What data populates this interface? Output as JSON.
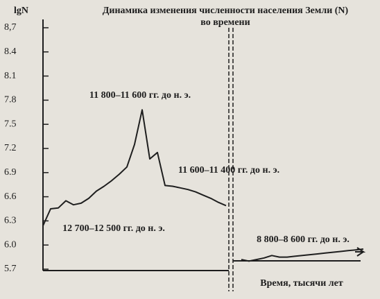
{
  "chart_data": {
    "type": "line",
    "title": "Динамика изменения численности населения Земли (N)",
    "subtitle": "во времени",
    "y_label": "lgN",
    "x_label": "Время, тысячи лет",
    "annotations": [
      "11 800–11 600 гг. до н. э.",
      "11 600–11 400 гг. до н. э.",
      "12 700–12 500 гг. до н. э.",
      "8 800–8 600 гг. до н. э."
    ],
    "categories": [
      null,
      null,
      null,
      null,
      null,
      null,
      null,
      null,
      null,
      null,
      null,
      null,
      null,
      null,
      null,
      null,
      null,
      null,
      null,
      null,
      null,
      null,
      null,
      null,
      null,
      null,
      null,
      null,
      null,
      null,
      null,
      null,
      null,
      null,
      null,
      null,
      null,
      null,
      null,
      null,
      null,
      null,
      null
    ],
    "series": [
      {
        "color": "#1e1e1e",
        "values": [
          6.24,
          6.45,
          6.46,
          6.55,
          6.5,
          6.52,
          6.58,
          6.67,
          6.73,
          6.8,
          6.88,
          6.97,
          7.25,
          7.68,
          7.07,
          7.15,
          6.74,
          6.73,
          6.71,
          6.69,
          6.66,
          6.62,
          6.58,
          6.53,
          6.49,
          null,
          5.82,
          5.8,
          5.82,
          5.84,
          5.87,
          5.85,
          5.85,
          5.86,
          5.87,
          5.88,
          5.89,
          5.9,
          5.91,
          5.92,
          5.93,
          5.94,
          5.95
        ]
      }
    ],
    "ylim": [
      5.7,
      8.7
    ],
    "yticks": [
      {
        "value": 5.7,
        "label": "5.7"
      },
      {
        "value": 6.0,
        "label": "6.0"
      },
      6.3,
      6.6,
      6.9,
      7.2,
      7.5,
      7.8,
      8.1,
      8.4,
      {
        "value": 8.7,
        "label": "8,7"
      }
    ]
  }
}
